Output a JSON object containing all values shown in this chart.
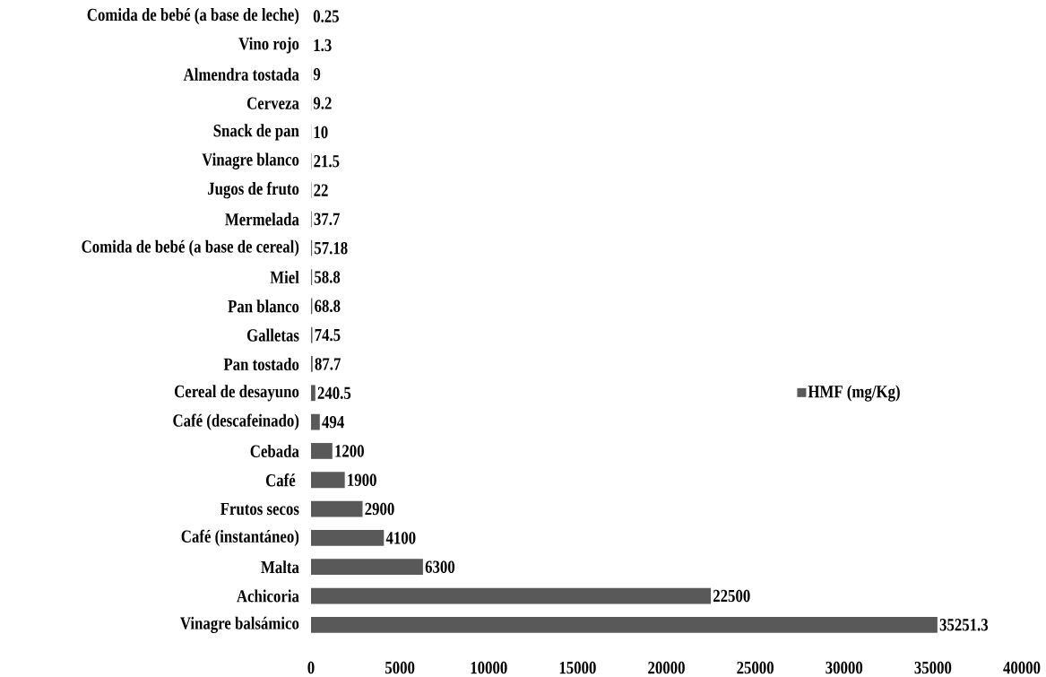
{
  "chart_data": {
    "type": "bar",
    "orientation": "horizontal",
    "categories": [
      "Comida de bebé (a base de leche)",
      "Vino rojo",
      "Almendra tostada",
      "Cerveza",
      "Snack de pan",
      "Vinagre blanco",
      "Jugos de fruto",
      "Mermelada",
      "Comida de bebé (a base de cereal)",
      "Miel",
      "Pan blanco",
      "Galletas",
      "Pan tostado",
      "Cereal de desayuno",
      "Café (descafeinado)",
      "Cebada",
      "Café ",
      "Frutos secos",
      "Café (instantáneo)",
      "Malta",
      "Achicoria",
      "Vinagre balsámico"
    ],
    "series": [
      {
        "name": "HMF (mg/Kg)",
        "color": "#595959",
        "values": [
          0.25,
          1.3,
          9,
          9.2,
          10,
          21.5,
          22,
          37.7,
          57.18,
          58.8,
          68.8,
          74.5,
          87.7,
          240.5,
          494,
          1200,
          1900,
          2900,
          4100,
          6300,
          22500,
          35251.3
        ]
      }
    ],
    "xlim": [
      0,
      40000
    ],
    "xticks": [
      0,
      5000,
      10000,
      15000,
      20000,
      25000,
      30000,
      35000,
      40000
    ],
    "data_labels": true,
    "legend": "right",
    "grid": false
  }
}
